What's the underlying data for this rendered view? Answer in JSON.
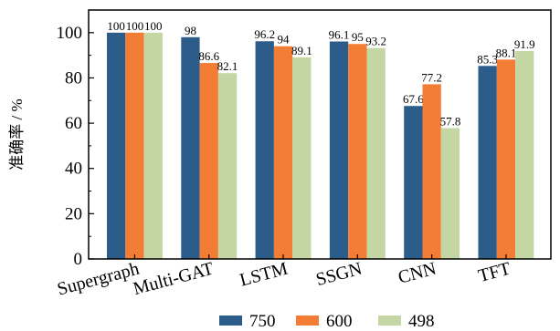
{
  "chart_data": {
    "type": "bar",
    "ylabel": "准确率 / %",
    "ylim": [
      0,
      110
    ],
    "yticks": [
      0,
      20,
      40,
      60,
      80,
      100
    ],
    "categories": [
      "Supergraph",
      "Multi-GAT",
      "LSTM",
      "SSGN",
      "CNN",
      "TFT"
    ],
    "series": [
      {
        "name": "750",
        "color": "#2b5c8a",
        "values": [
          100,
          98,
          96.2,
          96.1,
          67.6,
          85.3
        ]
      },
      {
        "name": "600",
        "color": "#f47d35",
        "values": [
          100,
          86.6,
          94,
          95,
          77.2,
          88.1
        ]
      },
      {
        "name": "498",
        "color": "#c4d6a4",
        "values": [
          100,
          82.1,
          89.1,
          93.2,
          57.8,
          91.9
        ]
      }
    ],
    "legend_position": "bottom-center",
    "grid": false
  }
}
